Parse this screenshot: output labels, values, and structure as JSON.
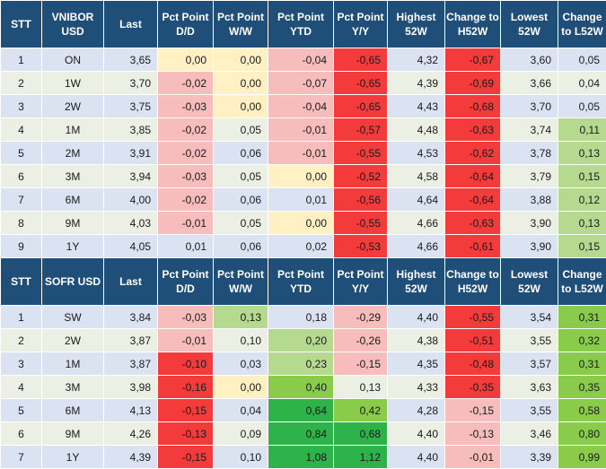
{
  "colors": {
    "header_bg": "#1f4e79",
    "row_odd": "#dbe3f3",
    "row_even": "#ecf0e4",
    "neg_strong": "#f33b3b",
    "neg_medium": "#f57171",
    "neg_light": "#f7bcbc",
    "neutral_yellow": "#fff1c4",
    "pos_light": "#b5d98f",
    "pos_medium": "#8acb4c",
    "pos_strong": "#2eb34b"
  },
  "vnibor": {
    "headers": [
      "STT",
      "VNIBOR USD",
      "Last",
      "Pct Point D/D",
      "Pct Point W/W",
      "Pct Point YTD",
      "Pct Point Y/Y",
      "Highest 52W",
      "Change to H52W",
      "Lowest 52W",
      "Change to L52W"
    ],
    "rows": [
      {
        "cells": [
          "1",
          "ON",
          "3,65",
          "0,00",
          "0,00",
          "-0,04",
          "-0,65",
          "4,32",
          "-0,67",
          "3,60",
          "0,05"
        ],
        "tones": [
          null,
          null,
          null,
          "y",
          "y",
          "l",
          "s",
          null,
          "s",
          null,
          null
        ]
      },
      {
        "cells": [
          "2",
          "1W",
          "3,70",
          "-0,02",
          "0,00",
          "-0,07",
          "-0,65",
          "4,39",
          "-0,69",
          "3,66",
          "0,04"
        ],
        "tones": [
          null,
          null,
          null,
          "l",
          "y",
          "l",
          "s",
          null,
          "s",
          null,
          null
        ]
      },
      {
        "cells": [
          "3",
          "2W",
          "3,75",
          "-0,03",
          "0,00",
          "-0,04",
          "-0,65",
          "4,43",
          "-0,68",
          "3,70",
          "0,05"
        ],
        "tones": [
          null,
          null,
          null,
          "l",
          "y",
          "l",
          "s",
          null,
          "s",
          null,
          null
        ]
      },
      {
        "cells": [
          "4",
          "1M",
          "3,85",
          "-0,02",
          "0,05",
          "-0,01",
          "-0,57",
          "4,48",
          "-0,63",
          "3,74",
          "0,11"
        ],
        "tones": [
          null,
          null,
          null,
          "l",
          null,
          "l",
          "s",
          null,
          "s",
          null,
          "pl"
        ]
      },
      {
        "cells": [
          "5",
          "2M",
          "3,91",
          "-0,02",
          "0,06",
          "-0,01",
          "-0,55",
          "4,53",
          "-0,62",
          "3,78",
          "0,13"
        ],
        "tones": [
          null,
          null,
          null,
          "l",
          null,
          "l",
          "s",
          null,
          "s",
          null,
          "pl"
        ]
      },
      {
        "cells": [
          "6",
          "3M",
          "3,94",
          "-0,03",
          "0,05",
          "0,00",
          "-0,52",
          "4,58",
          "-0,64",
          "3,79",
          "0,15"
        ],
        "tones": [
          null,
          null,
          null,
          "l",
          null,
          "y",
          "s",
          null,
          "s",
          null,
          "pl"
        ]
      },
      {
        "cells": [
          "7",
          "6M",
          "4,00",
          "-0,02",
          "0,06",
          "0,01",
          "-0,56",
          "4,64",
          "-0,64",
          "3,88",
          "0,12"
        ],
        "tones": [
          null,
          null,
          null,
          "l",
          null,
          null,
          "s",
          null,
          "s",
          null,
          "pl"
        ]
      },
      {
        "cells": [
          "8",
          "9M",
          "4,03",
          "-0,01",
          "0,05",
          "0,00",
          "-0,55",
          "4,66",
          "-0,63",
          "3,90",
          "0,13"
        ],
        "tones": [
          null,
          null,
          null,
          "l",
          null,
          "y",
          "s",
          null,
          "s",
          null,
          "pl"
        ]
      },
      {
        "cells": [
          "9",
          "1Y",
          "4,05",
          "0,01",
          "0,06",
          "0,02",
          "-0,53",
          "4,66",
          "-0,61",
          "3,90",
          "0,15"
        ],
        "tones": [
          null,
          null,
          null,
          null,
          null,
          null,
          "s",
          null,
          "s",
          null,
          "pl"
        ]
      }
    ]
  },
  "sofr": {
    "headers": [
      "STT",
      "SOFR USD",
      "Last",
      "Pct Point D/D",
      "Pct Point W/W",
      "Pct Point YTD",
      "Pct Point Y/Y",
      "Highest 52W",
      "Change to H52W",
      "Lowest 52W",
      "Change to L52W"
    ],
    "rows": [
      {
        "cells": [
          "1",
          "SW",
          "3,84",
          "-0,03",
          "0,13",
          "0,18",
          "-0,29",
          "4,40",
          "-0,55",
          "3,54",
          "0,31"
        ],
        "tones": [
          null,
          null,
          null,
          "l",
          "pl",
          null,
          "l",
          null,
          "s",
          null,
          "pm"
        ]
      },
      {
        "cells": [
          "2",
          "2W",
          "3,87",
          "-0,01",
          "0,10",
          "0,20",
          "-0,26",
          "4,38",
          "-0,51",
          "3,55",
          "0,32"
        ],
        "tones": [
          null,
          null,
          null,
          "l",
          null,
          "pl",
          "l",
          null,
          "s",
          null,
          "pm"
        ]
      },
      {
        "cells": [
          "3",
          "1M",
          "3,87",
          "-0,10",
          "0,03",
          "0,23",
          "-0,15",
          "4,35",
          "-0,48",
          "3,57",
          "0,31"
        ],
        "tones": [
          null,
          null,
          null,
          "s",
          null,
          "pl",
          "l",
          null,
          "s",
          null,
          "pm"
        ]
      },
      {
        "cells": [
          "4",
          "3M",
          "3,98",
          "-0,16",
          "0,00",
          "0,40",
          "0,13",
          "4,33",
          "-0,35",
          "3,63",
          "0,35"
        ],
        "tones": [
          null,
          null,
          null,
          "s",
          "y",
          "pm",
          null,
          null,
          "s",
          null,
          "pm"
        ]
      },
      {
        "cells": [
          "5",
          "6M",
          "4,13",
          "-0,15",
          "0,04",
          "0,64",
          "0,42",
          "4,28",
          "-0,15",
          "3,55",
          "0,58"
        ],
        "tones": [
          null,
          null,
          null,
          "s",
          null,
          "ps",
          "pm",
          null,
          "l",
          null,
          "pm"
        ]
      },
      {
        "cells": [
          "6",
          "9M",
          "4,26",
          "-0,13",
          "0,09",
          "0,84",
          "0,68",
          "4,40",
          "-0,13",
          "3,46",
          "0,80"
        ],
        "tones": [
          null,
          null,
          null,
          "s",
          null,
          "ps",
          "ps",
          null,
          "l",
          null,
          "pm"
        ]
      },
      {
        "cells": [
          "7",
          "1Y",
          "4,39",
          "-0,15",
          "0,10",
          "1,08",
          "1,12",
          "4,40",
          "-0,01",
          "3,39",
          "0,99"
        ],
        "tones": [
          null,
          null,
          null,
          "s",
          null,
          "ps",
          "ps",
          null,
          "l",
          null,
          "pm"
        ]
      }
    ]
  }
}
